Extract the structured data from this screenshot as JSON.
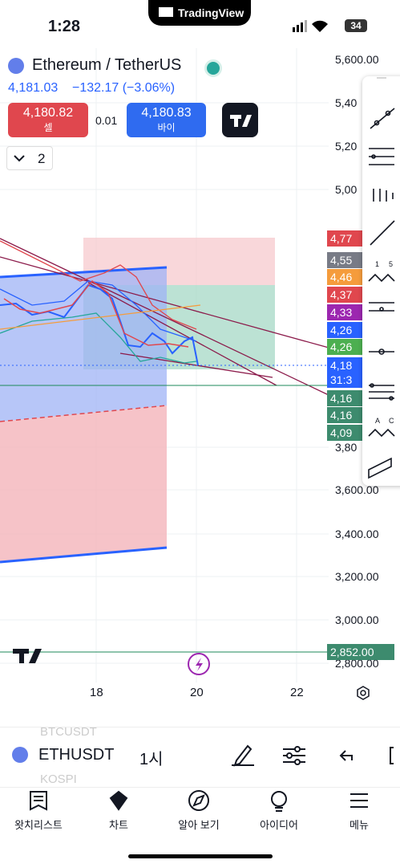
{
  "status_bar": {
    "time": "1:28",
    "app": "TradingView",
    "battery": "34"
  },
  "header": {
    "symbol_title": "Ethereum / TetherUS",
    "price": "4,181.03",
    "change": "−132.17 (−3.06%)",
    "sell": {
      "price": "4,180.82",
      "label": "셀"
    },
    "spread": "0.01",
    "buy": {
      "price": "4,180.83",
      "label": "바이"
    },
    "layouts": "2"
  },
  "price_axis": [
    "5,600.00",
    "5,40",
    "5,20",
    "5,00",
    "3,80",
    "3,600.00",
    "3,400.00",
    "3,200.00",
    "3,000.00",
    "2,800.00"
  ],
  "price_tags": [
    "4,77",
    "4,55",
    "4,46",
    "4,37",
    "4,33",
    "4,26",
    "4,26",
    "4,18",
    "31:3",
    "4,16",
    "4,16",
    "4,09",
    "2,852.00"
  ],
  "time_axis": [
    "18",
    "20",
    "22"
  ],
  "tool_labels": [
    "1",
    "5",
    "A",
    "C"
  ],
  "symbol_bar": {
    "prev": "BTCUSDT",
    "symbol": "ETHUSDT",
    "interval": "1시",
    "next": "KOSPI"
  },
  "nav": [
    "왓치리스트",
    "차트",
    "알아 보기",
    "아이디어",
    "메뉴"
  ]
}
